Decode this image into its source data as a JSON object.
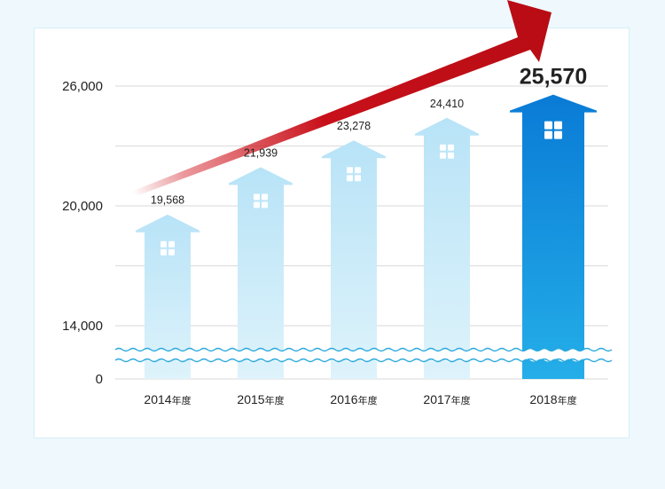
{
  "chart_data": {
    "type": "bar",
    "categories": [
      "2014年度",
      "2015年度",
      "2016年度",
      "2017年度",
      "2018年度"
    ],
    "values": [
      19568,
      21939,
      23278,
      24410,
      25570
    ],
    "value_labels": [
      "19,568",
      "21,939",
      "23,278",
      "24,410",
      "25,570"
    ],
    "yticks": [
      0,
      14000,
      20000,
      26000
    ],
    "ytick_labels": [
      "0",
      "14,000",
      "20,000",
      "26,000"
    ],
    "ylim": [
      14000,
      26800
    ],
    "axis_break": true,
    "grid": true,
    "title": "",
    "xlabel": "",
    "ylabel": "",
    "trend_arrow": true,
    "colors": {
      "bar_light_top": "#b8e3f7",
      "bar_light_bottom": "#ddf2fb",
      "bar_highlight_top": "#0a7bd6",
      "bar_highlight_bottom": "#24aee8",
      "arrow": "#c8101a",
      "grid": "#d9d9d9",
      "wave": "#29a8dc"
    }
  }
}
